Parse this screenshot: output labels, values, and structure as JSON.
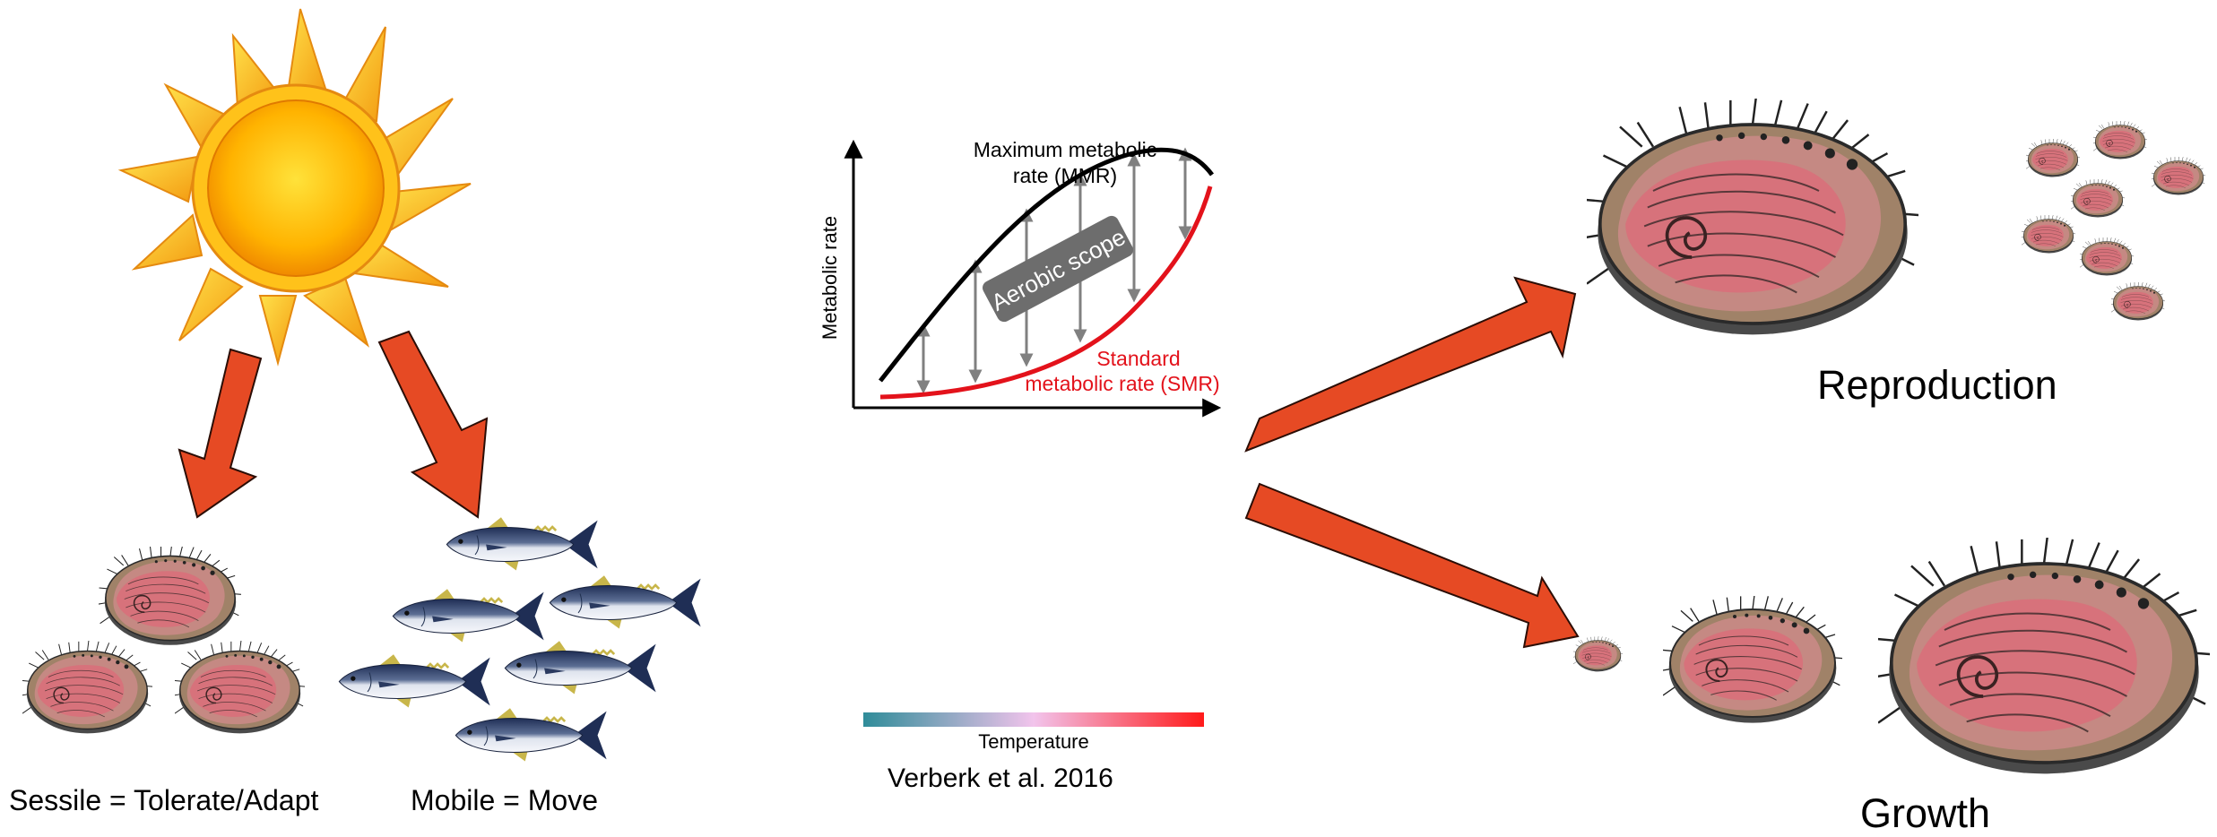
{
  "labels": {
    "sessile": "Sessile = Tolerate/Adapt",
    "mobile": "Mobile = Move",
    "reproduction": "Reproduction",
    "growth": "Growth",
    "citation": "Verberk et al. 2016"
  },
  "graph": {
    "y_axis_label": "Metabolic rate",
    "mmr_label_line1": "Maximum metabolic",
    "mmr_label_line2": "rate (MMR)",
    "smr_label_line1": "Standard",
    "smr_label_line2": "metabolic rate (SMR)",
    "scope_label": "Aerobic scope",
    "temperature_label": "Temperature"
  },
  "colors": {
    "arrow_fill": "#e64a24",
    "arrow_stroke": "#2b0d05",
    "mmr_line": "#000000",
    "smr_line": "#e3121b",
    "scope_box": "#6d6d6d",
    "gradient_start": "#2f8c99",
    "gradient_mid": "#f2c4ec",
    "gradient_end": "#ff1a1a",
    "sun_core": "#ffb300",
    "sun_ray": "#ffcc1a",
    "shell_body": "#a08268",
    "shell_interior": "#d96e7a"
  },
  "icons": {
    "sun": "sun-icon",
    "abalone": "abalone-icon",
    "fish": "tuna-icon"
  }
}
